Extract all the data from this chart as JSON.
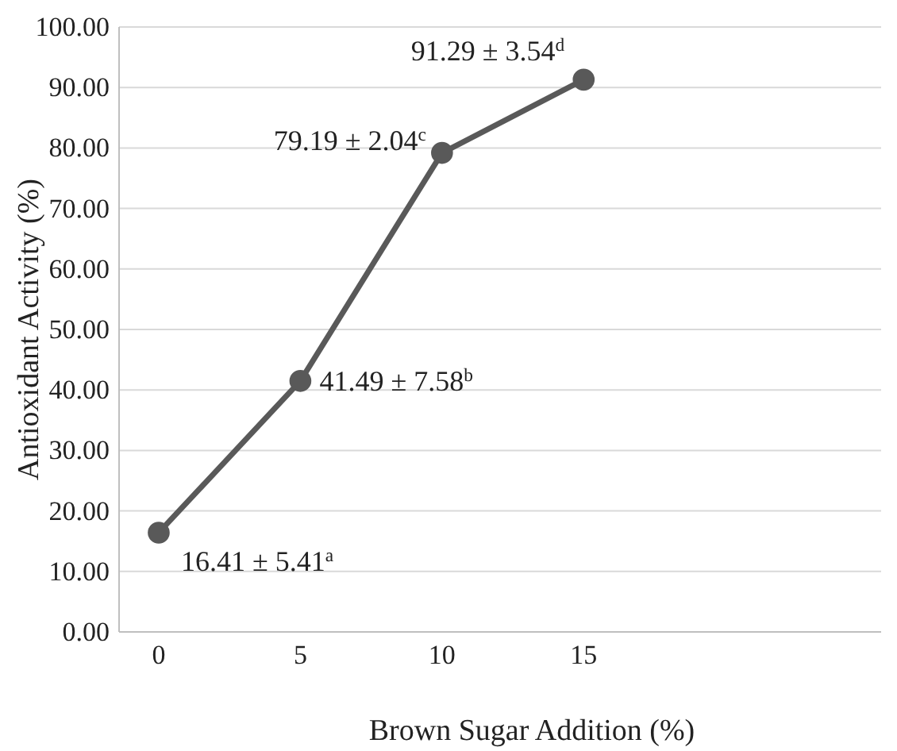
{
  "chart_data": {
    "type": "line",
    "xlabel": "Brown Sugar Addition (%)",
    "ylabel": "Antioxidant Activity (%)",
    "x": [
      0,
      5,
      10,
      15
    ],
    "series": [
      {
        "color": "#595959",
        "values": [
          16.41,
          41.49,
          79.19,
          91.29
        ],
        "value_labels": [
          "16.41 ± 5.41$^{a}$",
          "41.49 ± 7.58$^{b}$",
          "79.19 ± 2.04$^{c}$",
          "91.29 ± 3.54$^{d}$"
        ]
      }
    ],
    "xlim": [
      -1.4,
      25.5
    ],
    "xticks": [
      0,
      5,
      10,
      15
    ],
    "ylim": [
      0,
      100
    ],
    "yticks": [
      {
        "value": 0,
        "label": "0.00"
      },
      {
        "value": 10,
        "label": "10.00"
      },
      {
        "value": 20,
        "label": "20.00"
      },
      {
        "value": 30,
        "label": "30.00"
      },
      {
        "value": 40,
        "label": "40.00"
      },
      {
        "value": 50,
        "label": "50.00"
      },
      {
        "value": 60,
        "label": "60.00"
      },
      {
        "value": 70,
        "label": "70.00"
      },
      {
        "value": 80,
        "label": "80.00"
      },
      {
        "value": 90,
        "label": "90.00"
      },
      {
        "value": 100,
        "label": "100.00"
      }
    ],
    "grid": "y",
    "marker": "circle",
    "line_style": "solid"
  }
}
